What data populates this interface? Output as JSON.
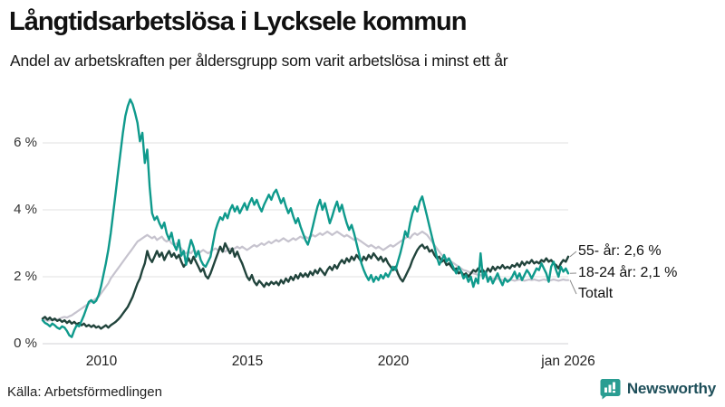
{
  "chart_data": {
    "type": "line",
    "title": "Långtidsarbetslösa i Lycksele kommun",
    "subtitle": "Andel av arbetskraften per åldersgrupp som varit arbetslösa i minst ett år",
    "unit": "%",
    "x_interval": "monthly",
    "x_range": [
      "jan 2008",
      "jan 2026"
    ],
    "ylim": [
      0,
      7.5
    ],
    "yticks": [
      0,
      2,
      4,
      6
    ],
    "ytick_labels": [
      "6 %",
      "4 %",
      "2 %",
      "0 %"
    ],
    "xticks": [
      "2010",
      "2015",
      "2020",
      "jan 2026"
    ],
    "grid": "horizontal",
    "legend_position": "right-annotations",
    "series": [
      {
        "name": "Totalt",
        "color": "#c6c3ce",
        "stroke_width": 2.2,
        "values": [
          0.7,
          0.72,
          0.68,
          0.7,
          0.72,
          0.7,
          0.72,
          0.75,
          0.78,
          0.8,
          0.78,
          0.82,
          0.85,
          0.9,
          0.95,
          1.0,
          1.05,
          1.1,
          1.15,
          1.2,
          1.25,
          1.3,
          1.35,
          1.4,
          1.5,
          1.6,
          1.7,
          1.8,
          1.95,
          2.05,
          2.15,
          2.25,
          2.35,
          2.45,
          2.55,
          2.65,
          2.75,
          2.85,
          2.95,
          3.05,
          3.1,
          3.15,
          3.2,
          3.25,
          3.2,
          3.15,
          3.2,
          3.1,
          3.15,
          3.2,
          3.1,
          3.05,
          3.1,
          3.0,
          2.95,
          3.0,
          2.9,
          2.85,
          2.75,
          2.7,
          2.75,
          2.7,
          2.8,
          2.75,
          2.7,
          2.75,
          2.8,
          2.75,
          2.7,
          2.75,
          2.8,
          2.85,
          2.8,
          2.85,
          2.8,
          2.75,
          2.8,
          2.85,
          2.8,
          2.85,
          2.9,
          2.85,
          2.9,
          2.85,
          2.8,
          2.85,
          2.9,
          2.95,
          2.9,
          2.95,
          3.0,
          2.95,
          3.0,
          3.05,
          3.0,
          3.05,
          3.1,
          3.05,
          3.1,
          3.15,
          3.1,
          3.05,
          3.1,
          3.15,
          3.1,
          3.15,
          3.2,
          3.15,
          3.2,
          3.15,
          3.2,
          3.25,
          3.2,
          3.25,
          3.3,
          3.25,
          3.3,
          3.35,
          3.3,
          3.25,
          3.3,
          3.35,
          3.3,
          3.25,
          3.2,
          3.25,
          3.2,
          3.15,
          3.1,
          3.15,
          3.1,
          3.05,
          3.0,
          2.95,
          2.9,
          2.95,
          2.9,
          2.85,
          2.9,
          2.85,
          2.8,
          2.85,
          2.9,
          2.95,
          2.9,
          2.95,
          3.0,
          3.05,
          3.1,
          3.15,
          3.2,
          3.15,
          3.25,
          3.3,
          3.25,
          3.3,
          3.35,
          3.3,
          3.25,
          3.15,
          3.05,
          2.95,
          2.85,
          2.75,
          2.65,
          2.6,
          2.55,
          2.5,
          2.45,
          2.4,
          2.35,
          2.3,
          2.25,
          2.2,
          2.18,
          2.15,
          2.12,
          2.1,
          2.08,
          2.05,
          2.05,
          2.02,
          2.0,
          1.98,
          1.95,
          1.95,
          1.92,
          1.95,
          1.92,
          1.9,
          1.92,
          1.9,
          1.92,
          1.9,
          1.88,
          1.9,
          1.92,
          1.9,
          1.88,
          1.9,
          1.92,
          1.9,
          1.92,
          1.9,
          1.88,
          1.9,
          1.92,
          1.9,
          1.88,
          1.9,
          1.92,
          1.9,
          1.88,
          1.9,
          1.92,
          1.9,
          1.9
        ]
      },
      {
        "name": "55- år",
        "color": "#21443c",
        "stroke_width": 2.4,
        "values": [
          0.75,
          0.8,
          0.72,
          0.78,
          0.7,
          0.75,
          0.68,
          0.72,
          0.65,
          0.7,
          0.62,
          0.68,
          0.6,
          0.65,
          0.58,
          0.62,
          0.55,
          0.6,
          0.52,
          0.56,
          0.5,
          0.55,
          0.48,
          0.52,
          0.45,
          0.5,
          0.55,
          0.48,
          0.55,
          0.6,
          0.65,
          0.72,
          0.8,
          0.9,
          1.0,
          1.1,
          1.25,
          1.4,
          1.6,
          1.8,
          1.95,
          2.2,
          2.4,
          2.77,
          2.55,
          2.44,
          2.6,
          2.77,
          2.6,
          2.72,
          2.5,
          2.65,
          2.77,
          2.6,
          2.7,
          2.55,
          2.65,
          2.45,
          2.3,
          2.4,
          2.55,
          2.4,
          2.6,
          2.45,
          2.3,
          2.15,
          2.25,
          2.03,
          1.95,
          2.1,
          2.3,
          2.5,
          2.7,
          2.9,
          2.75,
          3.0,
          2.85,
          2.7,
          2.85,
          2.6,
          2.75,
          2.55,
          2.4,
          2.2,
          2.0,
          1.9,
          2.05,
          1.85,
          1.75,
          1.88,
          1.8,
          1.7,
          1.82,
          1.75,
          1.85,
          1.78,
          1.85,
          1.75,
          1.9,
          1.8,
          1.95,
          1.85,
          2.0,
          1.9,
          2.05,
          1.95,
          2.1,
          2.0,
          2.1,
          2.0,
          2.15,
          2.05,
          2.2,
          2.1,
          2.25,
          2.15,
          2.05,
          2.2,
          2.3,
          2.2,
          2.35,
          2.25,
          2.4,
          2.5,
          2.4,
          2.55,
          2.45,
          2.6,
          2.5,
          2.65,
          2.55,
          2.45,
          2.6,
          2.5,
          2.65,
          2.55,
          2.7,
          2.6,
          2.5,
          2.6,
          2.45,
          2.55,
          2.4,
          2.3,
          2.2,
          2.3,
          2.1,
          1.95,
          1.86,
          2.0,
          2.15,
          2.3,
          2.5,
          2.65,
          2.8,
          2.9,
          2.96,
          2.85,
          2.9,
          2.75,
          2.8,
          2.65,
          2.55,
          2.6,
          2.45,
          2.5,
          2.35,
          2.4,
          2.3,
          2.2,
          2.25,
          2.1,
          2.15,
          2.05,
          2.1,
          2.0,
          2.1,
          2.2,
          2.15,
          2.25,
          2.15,
          2.2,
          2.1,
          2.25,
          2.15,
          2.3,
          2.2,
          2.3,
          2.25,
          2.35,
          2.25,
          2.3,
          2.25,
          2.35,
          2.3,
          2.4,
          2.3,
          2.45,
          2.35,
          2.45,
          2.4,
          2.5,
          2.4,
          2.45,
          2.4,
          2.5,
          2.45,
          2.55,
          2.45,
          2.5,
          2.4,
          2.35,
          2.25,
          2.4,
          2.5,
          2.45,
          2.6
        ]
      },
      {
        "name": "18-24 år",
        "color": "#0f9a8c",
        "stroke_width": 2.4,
        "values": [
          0.7,
          0.62,
          0.58,
          0.52,
          0.6,
          0.55,
          0.48,
          0.44,
          0.52,
          0.48,
          0.38,
          0.25,
          0.2,
          0.4,
          0.55,
          0.52,
          0.68,
          0.85,
          1.05,
          1.25,
          1.3,
          1.22,
          1.28,
          1.45,
          1.7,
          2.05,
          2.4,
          2.8,
          3.3,
          3.9,
          4.5,
          5.1,
          5.7,
          6.3,
          6.8,
          7.1,
          7.3,
          7.15,
          6.9,
          6.6,
          6.05,
          6.3,
          5.4,
          5.8,
          4.7,
          3.9,
          3.7,
          3.8,
          3.6,
          3.45,
          3.62,
          3.3,
          3.12,
          3.32,
          2.96,
          2.8,
          3.1,
          2.63,
          2.77,
          2.36,
          2.8,
          3.1,
          2.9,
          2.6,
          2.77,
          2.5,
          2.36,
          2.3,
          2.45,
          2.6,
          3.0,
          3.37,
          3.6,
          3.78,
          3.7,
          3.9,
          3.75,
          4.0,
          4.14,
          3.95,
          4.1,
          3.9,
          4.05,
          4.2,
          4.0,
          4.2,
          4.35,
          4.15,
          4.3,
          4.1,
          3.95,
          4.15,
          4.3,
          4.45,
          4.3,
          4.5,
          4.6,
          4.4,
          4.2,
          4.35,
          4.1,
          3.9,
          4.05,
          3.8,
          3.6,
          3.75,
          3.5,
          3.3,
          3.1,
          2.96,
          3.2,
          3.5,
          3.8,
          4.1,
          4.3,
          4.0,
          4.2,
          3.9,
          3.6,
          3.8,
          4.05,
          4.25,
          3.95,
          4.15,
          3.85,
          3.6,
          3.4,
          3.55,
          3.3,
          3.0,
          2.7,
          2.4,
          2.2,
          2.03,
          1.9,
          2.05,
          1.85,
          2.0,
          1.9,
          2.05,
          1.95,
          2.1,
          2.0,
          2.15,
          2.3,
          2.2,
          2.45,
          2.7,
          3.0,
          3.36,
          3.2,
          3.6,
          3.9,
          4.1,
          3.95,
          4.25,
          4.4,
          4.1,
          3.8,
          3.5,
          3.2,
          2.9,
          2.6,
          2.36,
          2.5,
          2.65,
          2.45,
          2.55,
          2.4,
          2.25,
          2.1,
          2.3,
          2.15,
          1.95,
          2.05,
          1.85,
          2.0,
          1.7,
          1.95,
          1.8,
          2.7,
          1.95,
          2.15,
          1.85,
          2.0,
          1.8,
          1.95,
          2.1,
          1.9,
          1.75,
          1.95,
          1.85,
          1.9,
          2.0,
          2.15,
          1.95,
          2.1,
          1.9,
          2.05,
          2.2,
          2.1,
          1.95,
          2.1,
          2.25,
          2.2,
          2.4,
          2.25,
          2.1,
          1.85,
          2.3,
          2.45,
          2.2,
          2.0,
          2.3,
          2.15,
          2.25,
          2.1
        ]
      }
    ],
    "annotations": [
      {
        "label": "55- år: 2,6 %",
        "series": "55- år",
        "last_value": "2,6 %"
      },
      {
        "label": "18-24 år: 2,1 %",
        "series": "18-24 år",
        "last_value": "2,1 %"
      },
      {
        "label": "Totalt",
        "series": "Totalt",
        "last_value": "1,9 %"
      }
    ],
    "colors": {
      "grid": "#e6e6e8",
      "baseline": "#dadadd",
      "connector": "#8a8a8a"
    }
  },
  "footer": {
    "source": "Källa: Arbetsförmedlingen",
    "brand": "Newsworthy",
    "brand_color": "#2a9d92",
    "brand_text_color": "#1e4f5a"
  }
}
